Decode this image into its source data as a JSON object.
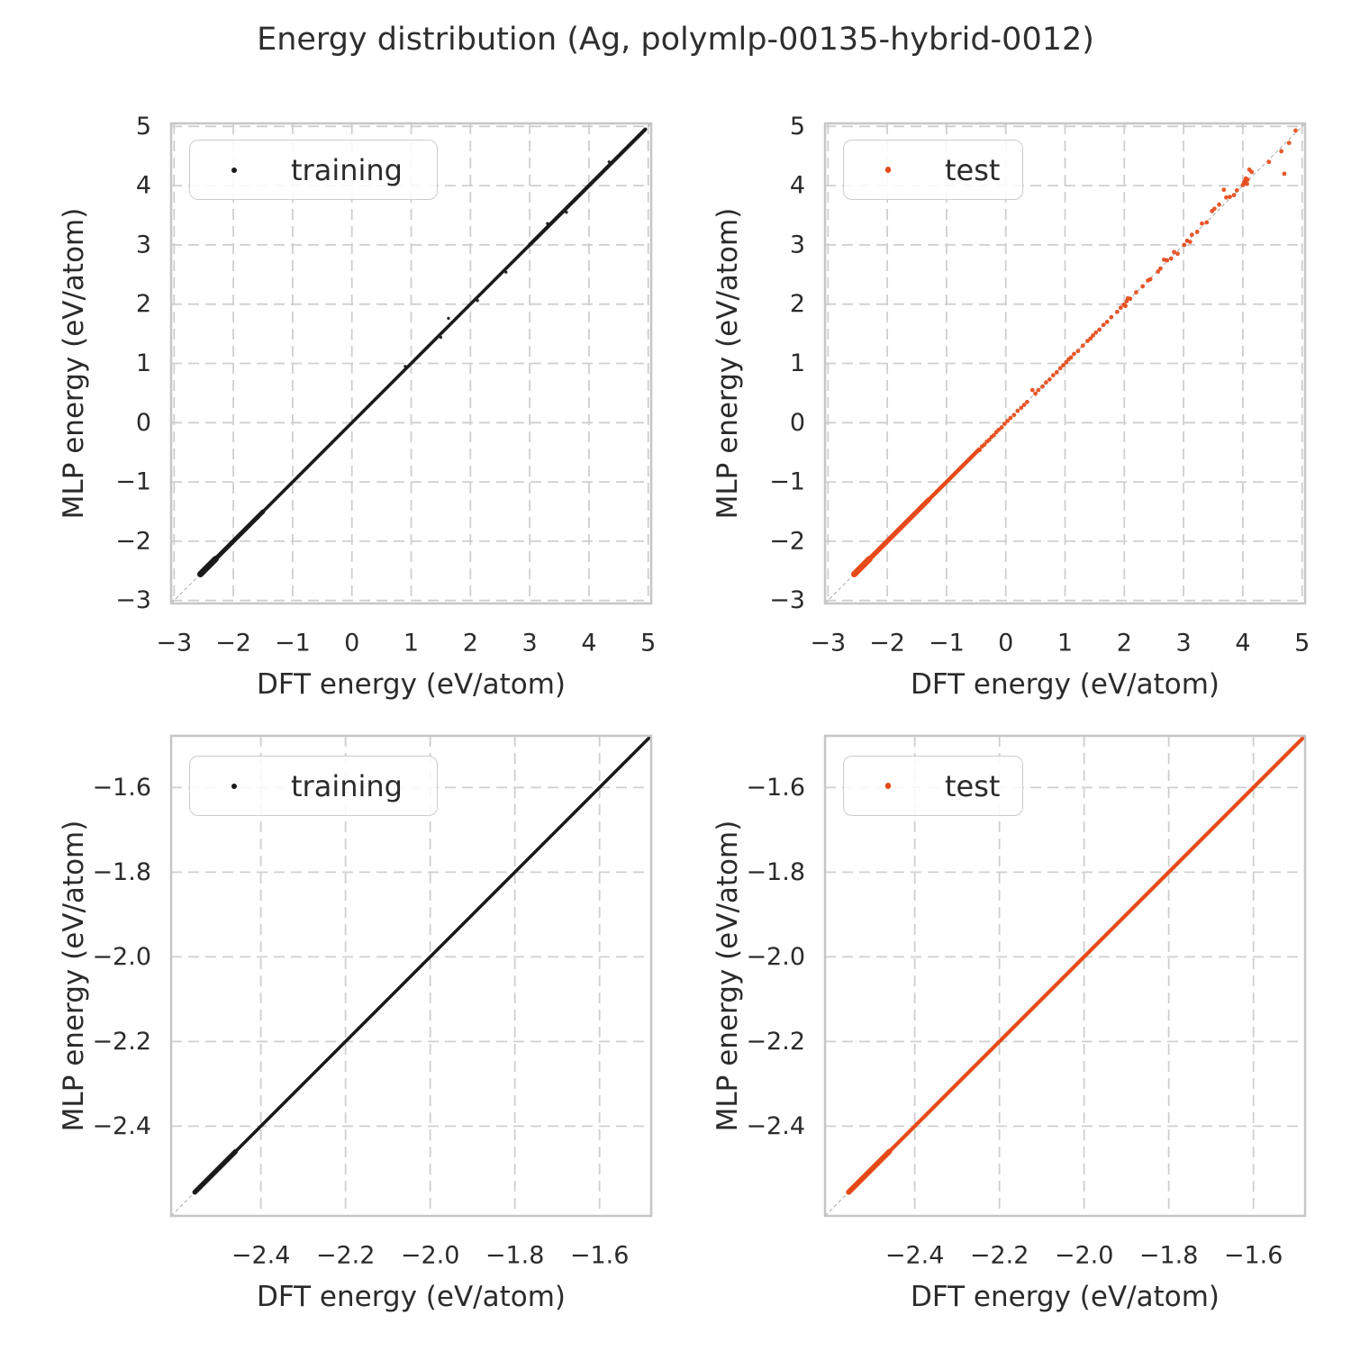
{
  "figure": {
    "title": "Energy distribution (Ag, polymlp-00135-hybrid-0012)"
  },
  "palette": {
    "training": "#1a1a1a",
    "test": "#e64a19",
    "grid": "#cfcfcf",
    "spine": "#c6c6c6",
    "identity_line": "#999999",
    "text": "#2b2b2b"
  },
  "chart_data": [
    {
      "id": "training-full-range",
      "type": "scatter",
      "xlabel": "DFT energy (eV/atom)",
      "ylabel": "MLP energy (eV/atom)",
      "xlim": [
        -3.05,
        5.05
      ],
      "ylim": [
        -3.05,
        5.05
      ],
      "grid": true,
      "identity_line": true,
      "xticks": {
        "values": [
          -3,
          -2,
          -1,
          0,
          1,
          2,
          3,
          4,
          5
        ],
        "labels": [
          "−3",
          "−2",
          "−1",
          "0",
          "1",
          "2",
          "3",
          "4",
          "5"
        ]
      },
      "yticks": {
        "values": [
          -3,
          -2,
          -1,
          0,
          1,
          2,
          3,
          4,
          5
        ],
        "labels": [
          "−3",
          "−2",
          "−1",
          "0",
          "1",
          "2",
          "3",
          "4",
          "5"
        ]
      },
      "legend": {
        "label": "training",
        "position": "upper left"
      },
      "series": [
        {
          "name": "training",
          "color": "#1a1a1a",
          "point_radius": 1.7,
          "diagonal_bands": [
            {
              "from": -2.556,
              "to": -2.3,
              "w": 7
            },
            {
              "from": -2.3,
              "to": -1.5,
              "w": 5
            },
            {
              "from": -1.5,
              "to": 3.0,
              "w": 3.6
            },
            {
              "from": 3.0,
              "to": 4.95,
              "w": 4.2
            }
          ],
          "points": [
            [
              1.63,
              1.76
            ],
            [
              1.5,
              1.44
            ],
            [
              2.12,
              2.06
            ],
            [
              0.9,
              0.95
            ],
            [
              2.6,
              2.54
            ],
            [
              3.3,
              3.36
            ],
            [
              3.62,
              3.55
            ],
            [
              4.34,
              4.4
            ]
          ]
        }
      ]
    },
    {
      "id": "test-full-range",
      "type": "scatter",
      "xlabel": "DFT energy (eV/atom)",
      "ylabel": "MLP energy (eV/atom)",
      "xlim": [
        -3.05,
        5.05
      ],
      "ylim": [
        -3.05,
        5.05
      ],
      "grid": true,
      "identity_line": true,
      "xticks": {
        "values": [
          -3,
          -2,
          -1,
          0,
          1,
          2,
          3,
          4,
          5
        ],
        "labels": [
          "−3",
          "−2",
          "−1",
          "0",
          "1",
          "2",
          "3",
          "4",
          "5"
        ]
      },
      "yticks": {
        "values": [
          -3,
          -2,
          -1,
          0,
          1,
          2,
          3,
          4,
          5
        ],
        "labels": [
          "−3",
          "−2",
          "−1",
          "0",
          "1",
          "2",
          "3",
          "4",
          "5"
        ]
      },
      "legend": {
        "label": "test",
        "position": "upper left"
      },
      "series": [
        {
          "name": "test",
          "color": "#e64a19",
          "point_radius": 2.4,
          "diagonal_bands": [
            {
              "from": -2.556,
              "to": -2.3,
              "w": 7
            },
            {
              "from": -2.3,
              "to": -1.3,
              "w": 5.5
            },
            {
              "from": -1.3,
              "to": -0.45,
              "w": 4.5
            }
          ],
          "points": [
            [
              -0.44,
              -0.46
            ],
            [
              -0.4,
              -0.4
            ],
            [
              -0.36,
              -0.37
            ],
            [
              -0.32,
              -0.32
            ],
            [
              -0.28,
              -0.29
            ],
            [
              -0.24,
              -0.24
            ],
            [
              -0.2,
              -0.21
            ],
            [
              -0.16,
              -0.16
            ],
            [
              -0.12,
              -0.12
            ],
            [
              -0.07,
              -0.08
            ],
            [
              -0.02,
              -0.02
            ],
            [
              0.03,
              0.03
            ],
            [
              0.08,
              0.08
            ],
            [
              0.14,
              0.13
            ],
            [
              0.2,
              0.2
            ],
            [
              0.26,
              0.25
            ],
            [
              0.31,
              0.3
            ],
            [
              0.36,
              0.35
            ],
            [
              0.45,
              0.55
            ],
            [
              0.5,
              0.49
            ],
            [
              0.55,
              0.55
            ],
            [
              0.62,
              0.61
            ],
            [
              0.68,
              0.68
            ],
            [
              0.74,
              0.73
            ],
            [
              0.8,
              0.8
            ],
            [
              0.86,
              0.85
            ],
            [
              0.92,
              0.92
            ],
            [
              0.97,
              0.97
            ],
            [
              1.02,
              1.02
            ],
            [
              1.06,
              1.07
            ],
            [
              1.1,
              1.1
            ],
            [
              1.15,
              1.16
            ],
            [
              1.22,
              1.21
            ],
            [
              1.3,
              1.3
            ],
            [
              1.38,
              1.38
            ],
            [
              1.43,
              1.42
            ],
            [
              1.47,
              1.47
            ],
            [
              1.52,
              1.52
            ],
            [
              1.58,
              1.57
            ],
            [
              1.65,
              1.65
            ],
            [
              1.71,
              1.7
            ],
            [
              1.78,
              1.78
            ],
            [
              1.88,
              1.87
            ],
            [
              1.94,
              1.94
            ],
            [
              1.99,
              1.99
            ],
            [
              2.02,
              1.97
            ],
            [
              2.04,
              2.05
            ],
            [
              2.06,
              2.1
            ],
            [
              2.1,
              2.09
            ],
            [
              2.2,
              2.2
            ],
            [
              2.31,
              2.3
            ],
            [
              2.4,
              2.4
            ],
            [
              2.44,
              2.42
            ],
            [
              2.57,
              2.55
            ],
            [
              2.61,
              2.6
            ],
            [
              2.67,
              2.75
            ],
            [
              2.72,
              2.74
            ],
            [
              2.79,
              2.77
            ],
            [
              2.84,
              2.88
            ],
            [
              2.9,
              2.85
            ],
            [
              3.01,
              3.0
            ],
            [
              3.06,
              3.07
            ],
            [
              3.11,
              3.05
            ],
            [
              3.14,
              3.17
            ],
            [
              3.23,
              3.22
            ],
            [
              3.31,
              3.36
            ],
            [
              3.39,
              3.38
            ],
            [
              3.48,
              3.57
            ],
            [
              3.52,
              3.61
            ],
            [
              3.6,
              3.68
            ],
            [
              3.68,
              3.93
            ],
            [
              3.72,
              3.8
            ],
            [
              3.78,
              3.81
            ],
            [
              3.85,
              3.84
            ],
            [
              3.9,
              3.92
            ],
            [
              4.0,
              4.01
            ],
            [
              4.02,
              4.05
            ],
            [
              4.04,
              4.08
            ],
            [
              4.05,
              4.12
            ],
            [
              4.07,
              4.03
            ],
            [
              4.08,
              4.1
            ],
            [
              4.11,
              4.27
            ],
            [
              4.15,
              4.23
            ],
            [
              4.44,
              4.4
            ],
            [
              4.65,
              4.58
            ],
            [
              4.7,
              4.2
            ],
            [
              4.78,
              4.72
            ],
            [
              4.89,
              4.93
            ]
          ]
        }
      ]
    },
    {
      "id": "training-zoomed",
      "type": "scatter",
      "xlabel": "DFT energy (eV/atom)",
      "ylabel": "MLP energy (eV/atom)",
      "xlim": [
        -2.612,
        -1.478
      ],
      "ylim": [
        -2.612,
        -1.478
      ],
      "grid": true,
      "identity_line": true,
      "xticks": {
        "values": [
          -2.4,
          -2.2,
          -2.0,
          -1.8,
          -1.6
        ],
        "labels": [
          "−2.4",
          "−2.2",
          "−2.0",
          "−1.8",
          "−1.6"
        ]
      },
      "yticks": {
        "values": [
          -2.4,
          -2.2,
          -2.0,
          -1.8,
          -1.6
        ],
        "labels": [
          "−2.4",
          "−2.2",
          "−2.0",
          "−1.8",
          "−1.6"
        ]
      },
      "legend": {
        "label": "training",
        "position": "upper left"
      },
      "series": [
        {
          "name": "training",
          "color": "#1a1a1a",
          "point_radius": 1.7,
          "diagonal_bands": [
            {
              "from": -2.556,
              "to": -2.46,
              "w": 5.5
            },
            {
              "from": -2.46,
              "to": -1.478,
              "w": 3.6
            }
          ],
          "points": []
        }
      ]
    },
    {
      "id": "test-zoomed",
      "type": "scatter",
      "xlabel": "DFT energy (eV/atom)",
      "ylabel": "MLP energy (eV/atom)",
      "xlim": [
        -2.612,
        -1.478
      ],
      "ylim": [
        -2.612,
        -1.478
      ],
      "grid": true,
      "identity_line": true,
      "xticks": {
        "values": [
          -2.4,
          -2.2,
          -2.0,
          -1.8,
          -1.6
        ],
        "labels": [
          "−2.4",
          "−2.2",
          "−2.0",
          "−1.8",
          "−1.6"
        ]
      },
      "yticks": {
        "values": [
          -2.4,
          -2.2,
          -2.0,
          -1.8,
          -1.6
        ],
        "labels": [
          "−2.4",
          "−2.2",
          "−2.0",
          "−1.8",
          "−1.6"
        ]
      },
      "legend": {
        "label": "test",
        "position": "upper left"
      },
      "series": [
        {
          "name": "test",
          "color": "#e64a19",
          "point_radius": 2.4,
          "diagonal_bands": [
            {
              "from": -2.556,
              "to": -2.46,
              "w": 6
            },
            {
              "from": -2.46,
              "to": -1.478,
              "w": 4.2
            }
          ],
          "points": []
        }
      ]
    }
  ]
}
